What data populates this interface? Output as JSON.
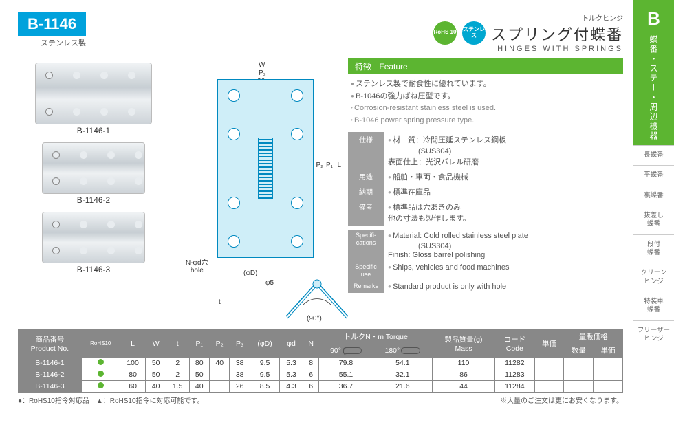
{
  "header": {
    "code": "B-1146",
    "code_sub": "ステンレス製",
    "rohs_label": "RoHS\n10",
    "sus_label": "ステンレス",
    "kana": "トルクヒンジ",
    "title_jp": "スプリング付蝶番",
    "title_en": "HINGES WITH SPRINGS"
  },
  "variants": [
    "B-1146-1",
    "B-1146-2",
    "B-1146-3"
  ],
  "drawing": {
    "labels": {
      "W": "W",
      "P3": "P₃",
      "v26": "26",
      "P2": "P₂",
      "P1": "P₁",
      "L": "L",
      "hole": "N-φd穴\nhole",
      "phiD": "(φD)",
      "phi5": "φ5",
      "t": "t",
      "angle": "(90°)"
    }
  },
  "feature": {
    "head_jp": "特徴",
    "head_en": "Feature",
    "items_jp": [
      "ステンレス製で耐食性に優れています。",
      "B-1046の強力ばね圧型です。"
    ],
    "items_en": [
      "Corrosion-resistant stainless steel is used.",
      "B-1046 power spring pressure type."
    ]
  },
  "specs_jp": [
    {
      "lbl": "仕様",
      "val": "材　質：冷間圧延ステンレス鋼板\n　　　　(SUS304)\n表面仕上：光沢バレル研磨"
    },
    {
      "lbl": "用途",
      "val": "船舶・車両・食品機械"
    },
    {
      "lbl": "納期",
      "val": "標準在庫品"
    },
    {
      "lbl": "備考",
      "val": "標準品は穴あきのみ\n他の寸法も製作します。"
    }
  ],
  "specs_en": [
    {
      "lbl": "Specifi-\ncations",
      "val": "Material: Cold rolled stainless steel plate\n　　　　(SUS304)\nFinish: Gloss barrel polishing"
    },
    {
      "lbl": "Specific use",
      "val": "Ships, vehicles and food machines"
    },
    {
      "lbl": "Remarks",
      "val": "Standard product is only with hole"
    }
  ],
  "table": {
    "head": {
      "pn_jp": "商品番号",
      "pn_en": "Product No.",
      "rohs": "RoHS10",
      "cols": [
        "L",
        "W",
        "t",
        "P₁",
        "P₂",
        "P₃",
        "(φD)",
        "φd",
        "N"
      ],
      "torque": "トルクN・m Torque",
      "torque90": "90°",
      "torque180": "180°",
      "mass": "製品質量(g)\nMass",
      "code": "コード\nCode",
      "price": "単価",
      "bulk": "量販価格",
      "bulk_qty": "数量",
      "bulk_price": "単価"
    },
    "rows": [
      {
        "pn": "B-1146-1",
        "rohs": true,
        "L": "100",
        "W": "50",
        "t": "2",
        "P1": "80",
        "P2": "40",
        "P3": "38",
        "phiD": "9.5",
        "phid": "5.3",
        "N": "8",
        "t90": "79.8",
        "t180": "54.1",
        "mass": "110",
        "code": "11282"
      },
      {
        "pn": "B-1146-2",
        "rohs": true,
        "L": "80",
        "W": "50",
        "t": "2",
        "P1": "50",
        "P2": "",
        "P3": "38",
        "phiD": "9.5",
        "phid": "5.3",
        "N": "6",
        "t90": "55.1",
        "t180": "32.1",
        "mass": "86",
        "code": "11283"
      },
      {
        "pn": "B-1146-3",
        "rohs": true,
        "L": "60",
        "W": "40",
        "t": "1.5",
        "P1": "40",
        "P2": "",
        "P3": "26",
        "phiD": "8.5",
        "phid": "4.3",
        "N": "6",
        "t90": "36.7",
        "t180": "21.6",
        "mass": "44",
        "code": "11284"
      }
    ],
    "foot_left": "●：RoHS10指令対応品　▲：RoHS10指令に対応可能です。",
    "foot_right": "※大量のご注文は更にお安くなります。"
  },
  "sidebar": {
    "letter": "B",
    "vtext": "蝶番・ステー・周辺機器",
    "items": [
      "長蝶番",
      "平蝶番",
      "裏蝶番",
      "抜差し\n蝶番",
      "段付\n蝶番",
      "クリーン\nヒンジ",
      "特装車\n蝶番",
      "フリーザー\nヒンジ"
    ]
  },
  "colors": {
    "brand_blue": "#00a2dc",
    "green": "#5cb531",
    "grey": "#888888",
    "draw_blue": "#cfeef8"
  }
}
